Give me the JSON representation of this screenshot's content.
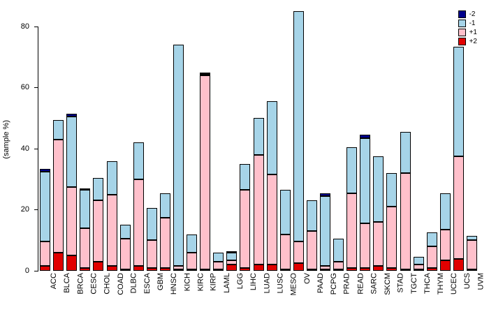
{
  "figure": {
    "background": "#ffffff"
  },
  "chart_data": {
    "type": "bar",
    "stacked": true,
    "title": "",
    "xlabel": "",
    "ylabel": "(sample %)",
    "ylim": [
      0,
      86
    ],
    "yticks": [
      0,
      20,
      40,
      60,
      80
    ],
    "grid": false,
    "legend_position": "top-right",
    "legend_entries": [
      "-2",
      "-1",
      "+1",
      "+2"
    ],
    "categories": [
      "ACC",
      "BLCA",
      "BRCA",
      "CESC",
      "CHOL",
      "COAD",
      "DLBC",
      "ESCA",
      "GBM",
      "HNSC",
      "KICH",
      "KIRC",
      "KIRP",
      "LAML",
      "LGG",
      "LIHC",
      "LUAD",
      "LUSC",
      "MESO",
      "OV",
      "PAAD",
      "PCPG",
      "PRAD",
      "READ",
      "SARC",
      "SKCM",
      "STAD",
      "TGCT",
      "THCA",
      "THYM",
      "UCEC",
      "UCS",
      "UVM"
    ],
    "series": [
      {
        "name": "+2",
        "color": "#E10000",
        "values": [
          1.5,
          6,
          5,
          1,
          3,
          1.5,
          0.5,
          1.5,
          1,
          1,
          0.5,
          0.5,
          0.5,
          0.5,
          2,
          1,
          2,
          2,
          0.5,
          2.5,
          0.5,
          0.5,
          0.5,
          1,
          1,
          1.5,
          1,
          0.5,
          0.5,
          1,
          3.5,
          4,
          0.5
        ]
      },
      {
        "name": "+1",
        "color": "#FFC0CB",
        "values": [
          8,
          37,
          22.5,
          13,
          20,
          23.5,
          10,
          28.5,
          9,
          16.5,
          1,
          5.5,
          63.5,
          2.5,
          1.5,
          25.5,
          36,
          29.5,
          11.5,
          7,
          12.5,
          1,
          2.5,
          24.5,
          14.5,
          14.5,
          20,
          31.5,
          1.5,
          7,
          10,
          33.5,
          9.5
        ]
      },
      {
        "name": "-1",
        "color": "#A6D4E8",
        "values": [
          23,
          6.5,
          23,
          12.5,
          7.5,
          11,
          4.5,
          12,
          10.5,
          8,
          72.5,
          6,
          0.5,
          3,
          2.5,
          8.5,
          12,
          24,
          14.5,
          75.5,
          10,
          23,
          7.5,
          15,
          28,
          21.5,
          11,
          13.5,
          2.5,
          4.5,
          12,
          36,
          1.5
        ]
      },
      {
        "name": "-2",
        "color": "#00008B",
        "values": [
          1,
          0,
          1,
          0.5,
          0,
          0,
          0,
          0,
          0,
          0,
          0,
          0,
          0.5,
          0,
          0.5,
          0,
          0,
          0,
          0,
          0,
          0,
          1,
          0,
          0,
          1,
          0,
          0,
          0,
          0,
          0,
          0,
          0,
          0
        ]
      }
    ]
  }
}
